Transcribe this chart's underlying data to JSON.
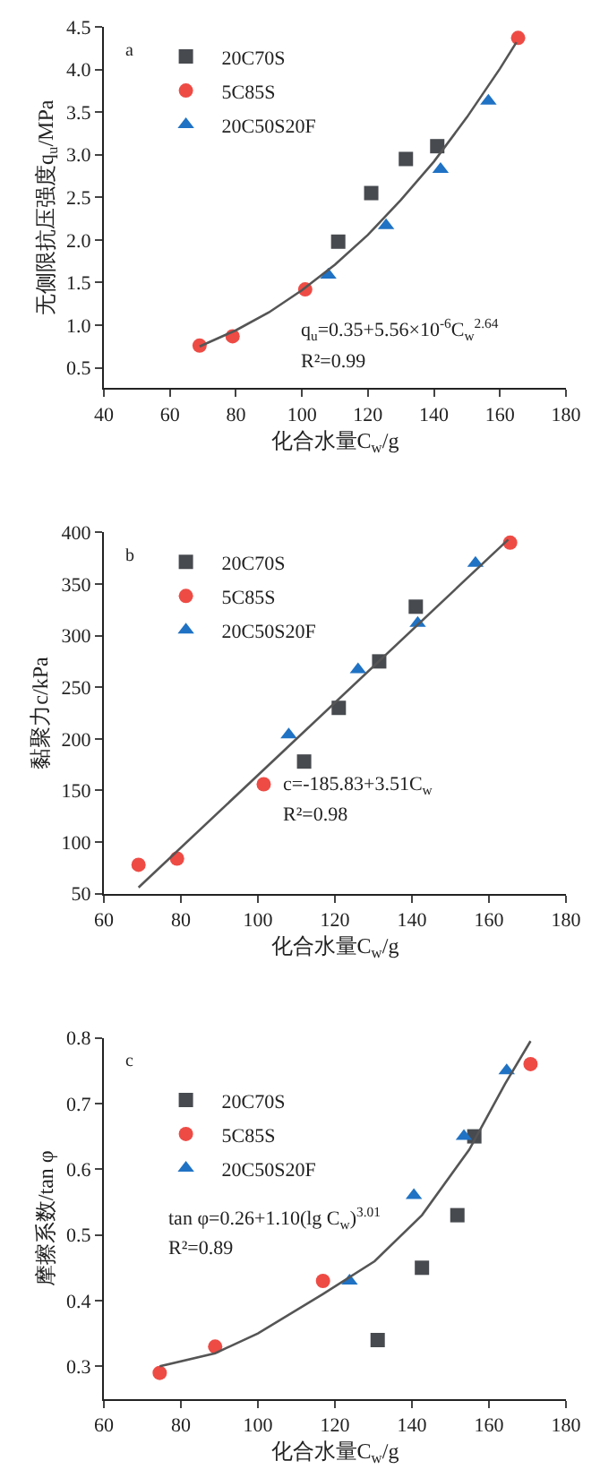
{
  "chart_data": [
    {
      "type": "scatter",
      "xlabel": "化合水量C$_{w}$/g",
      "ylabel": "无侧限抗压强度q$_{u}$/MPa",
      "xlim": [
        40,
        180
      ],
      "xticks": [
        40,
        60,
        80,
        100,
        120,
        140,
        160,
        180
      ],
      "ylim": [
        0.26,
        4.5
      ],
      "yticks": [
        0.5,
        {
          "value": 1,
          "label": "1.0"
        },
        1.5,
        {
          "value": 2,
          "label": "2.0"
        },
        2.5,
        {
          "value": 3,
          "label": "3.0"
        },
        3.5,
        {
          "value": 4,
          "label": "4.0"
        },
        4.5
      ],
      "legend": "top left",
      "annotations": [
        "a",
        "q$_{u}$=0.35+5.56×10$^{-6}$C$_{w}$$^{2.64}$",
        "R²=0.99"
      ],
      "series": [
        {
          "name": "20C70S",
          "color": "#474a4f",
          "marker": "square",
          "x": [
            111,
            121,
            131.5,
            141
          ],
          "values": [
            1.98,
            2.55,
            2.95,
            3.1
          ]
        },
        {
          "name": "5C85S",
          "color": "#ee4b45",
          "marker": "circle",
          "x": [
            69,
            79,
            101,
            165.5
          ],
          "values": [
            0.76,
            0.87,
            1.42,
            4.37
          ]
        },
        {
          "name": "20C50S20F",
          "color": "#1f72c4",
          "marker": "triangle",
          "x": [
            108,
            125.5,
            142,
            156.5
          ],
          "values": [
            1.59,
            2.17,
            2.83,
            3.63
          ]
        },
        {
          "type": "line",
          "color": "#555555",
          "line_style": "solid",
          "x": [
            69,
            80,
            90,
            100,
            110,
            120,
            130,
            140,
            150,
            160,
            165
          ],
          "values": [
            0.75,
            0.94,
            1.15,
            1.41,
            1.71,
            2.06,
            2.47,
            2.92,
            3.44,
            4.01,
            4.32
          ]
        }
      ]
    },
    {
      "type": "scatter",
      "xlabel": "化合水量C$_{w}$/g",
      "ylabel": "黏聚力c/kPa",
      "xlim": [
        60,
        180
      ],
      "xticks": [
        60,
        80,
        100,
        120,
        140,
        160,
        180
      ],
      "ylim": [
        50,
        400
      ],
      "yticks": [
        50,
        100,
        150,
        200,
        250,
        300,
        350,
        400
      ],
      "legend": "top left",
      "annotations": [
        "b",
        "c=-185.83+3.51C$_{w}$",
        "R²=0.98"
      ],
      "series": [
        {
          "name": "20C70S",
          "color": "#474a4f",
          "marker": "square",
          "x": [
            112,
            121,
            131.5,
            141
          ],
          "values": [
            178,
            230,
            275,
            328
          ]
        },
        {
          "name": "5C85S",
          "color": "#ee4b45",
          "marker": "circle",
          "x": [
            69,
            79,
            101.5,
            165.5
          ],
          "values": [
            78,
            84,
            156,
            390
          ]
        },
        {
          "name": "20C50S20F",
          "color": "#1f72c4",
          "marker": "triangle",
          "x": [
            108,
            126,
            141.5,
            156.5
          ],
          "values": [
            204,
            267,
            312,
            370
          ]
        },
        {
          "type": "line",
          "color": "#555555",
          "line_style": "solid",
          "x": [
            69,
            165
          ],
          "values": [
            56,
            393
          ]
        }
      ]
    },
    {
      "type": "scatter",
      "xlabel": "化合水量C$_{w}$/g",
      "ylabel": "摩擦系数/tan φ",
      "xlim": [
        60,
        180
      ],
      "xticks": [
        60,
        80,
        100,
        120,
        140,
        160,
        180
      ],
      "ylim": [
        0.25,
        0.8
      ],
      "yticks": [
        0.3,
        0.4,
        0.5,
        0.6,
        0.7,
        0.8
      ],
      "legend": "top left",
      "annotations": [
        "c",
        "tan φ=0.26+1.10(lg C$_{w}$)$^{3.01}$",
        "R²=0.89"
      ],
      "series": [
        {
          "name": "20C70S",
          "color": "#474a4f",
          "marker": "square",
          "x": [
            131.1,
            142.6,
            151.8,
            156.2
          ],
          "values": [
            0.34,
            0.45,
            0.53,
            0.65
          ]
        },
        {
          "name": "5C85S",
          "color": "#ee4b45",
          "marker": "circle",
          "x": [
            74.5,
            88.9,
            116.9,
            170.8
          ],
          "values": [
            0.29,
            0.33,
            0.43,
            0.76
          ]
        },
        {
          "name": "20C50S20F",
          "color": "#1f72c4",
          "marker": "triangle",
          "x": [
            123.8,
            140.5,
            153.5,
            164.6
          ],
          "values": [
            0.43,
            0.56,
            0.65,
            0.75
          ]
        },
        {
          "type": "line",
          "color": "#555555",
          "line_style": "solid",
          "x": [
            74.5,
            88.9,
            100,
            116.9,
            130.3,
            142.6,
            154.9,
            164.2,
            170.8
          ],
          "values": [
            0.3,
            0.32,
            0.35,
            0.41,
            0.46,
            0.53,
            0.63,
            0.73,
            0.795
          ]
        }
      ]
    }
  ]
}
